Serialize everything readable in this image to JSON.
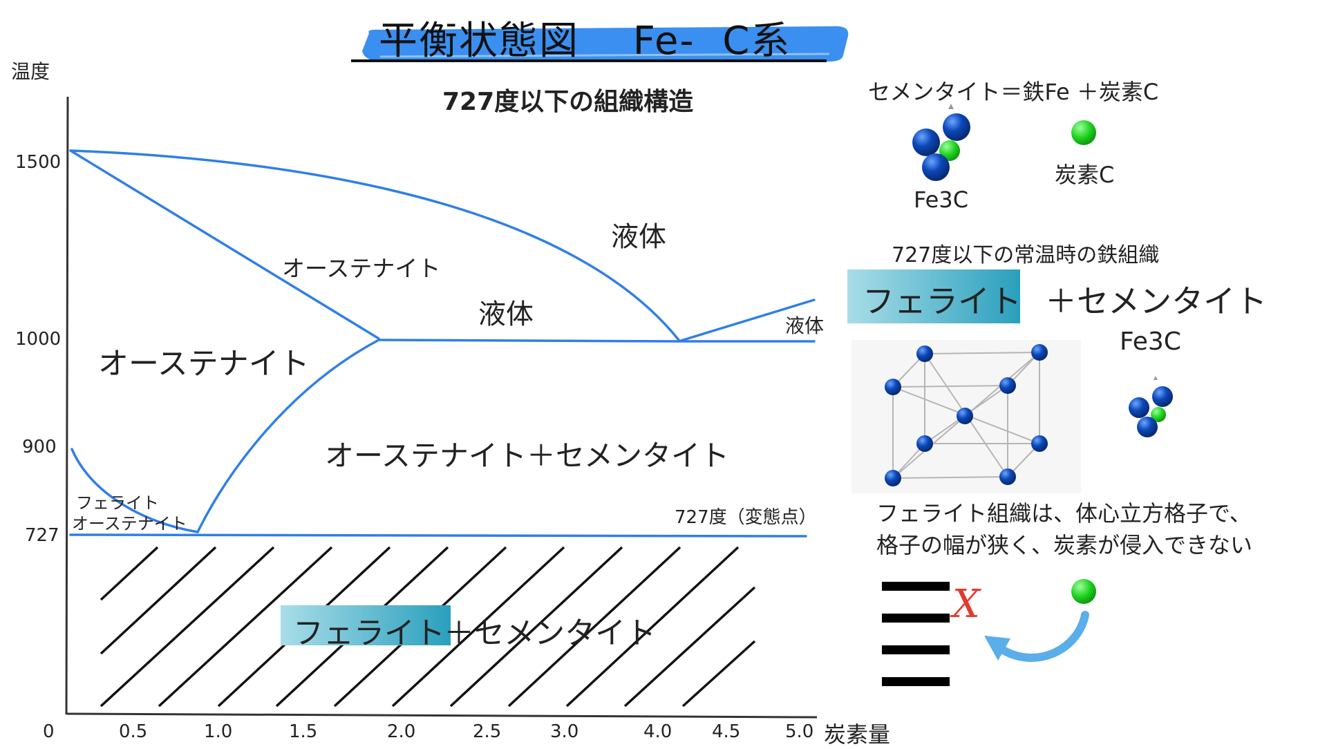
{
  "title": "平衡状態図　 Fe-  C系",
  "subtitle": "727度以下の組織構造",
  "axes": {
    "y_label": "温度",
    "x_label": "炭素量",
    "y_ticks": [
      "1500",
      "1000",
      "900",
      "727"
    ],
    "x_origin": "0",
    "x_ticks": [
      "0.5",
      "1.0",
      "1.5",
      "2.0",
      "2.5",
      "3.0",
      "4.0",
      "4.5",
      "5.0"
    ]
  },
  "regions": {
    "liquid_top": "液体",
    "liquid_mid": "液体",
    "liquid_right": "液体",
    "austenite_upper": "オーステナイト",
    "austenite_left": "オーステナイト",
    "austenite_cementite": "オーステナイト＋セメンタイト",
    "ferrite_austenite_1": "フェライト",
    "ferrite_austenite_2": "オーステナイト",
    "eutectoid_label": "727度（変態点）",
    "lower_ferrite": "フェライト",
    "lower_cementite": "＋セメンタイト"
  },
  "right_panel": {
    "cementite_formula": "セメンタイト＝鉄Fe ＋炭素C",
    "fe3c_label_1": "Fe3C",
    "carbon_label": "炭素C",
    "room_temp_heading": "727度以下の常温時の鉄組織",
    "ferrite_box": "フェライト",
    "plus_cementite": "＋セメンタイト",
    "fe3c_label_2": "Fe3C",
    "explanation_line1": "フェライト組織は、体心立方格子で、",
    "explanation_line2": "格子の幅が狭く、炭素が侵入できない",
    "cross_mark": "X"
  },
  "colors": {
    "phase_line": "#2f7fe8",
    "iron_atom": "#0b3f9e",
    "carbon_atom": "#1fd21f",
    "ferrite_box_start": "#a9dde8",
    "ferrite_box_end": "#2a9fbd",
    "title_brush": "#3b8ff0",
    "arrow": "#5aaeea",
    "cross": "#e23a2e"
  }
}
